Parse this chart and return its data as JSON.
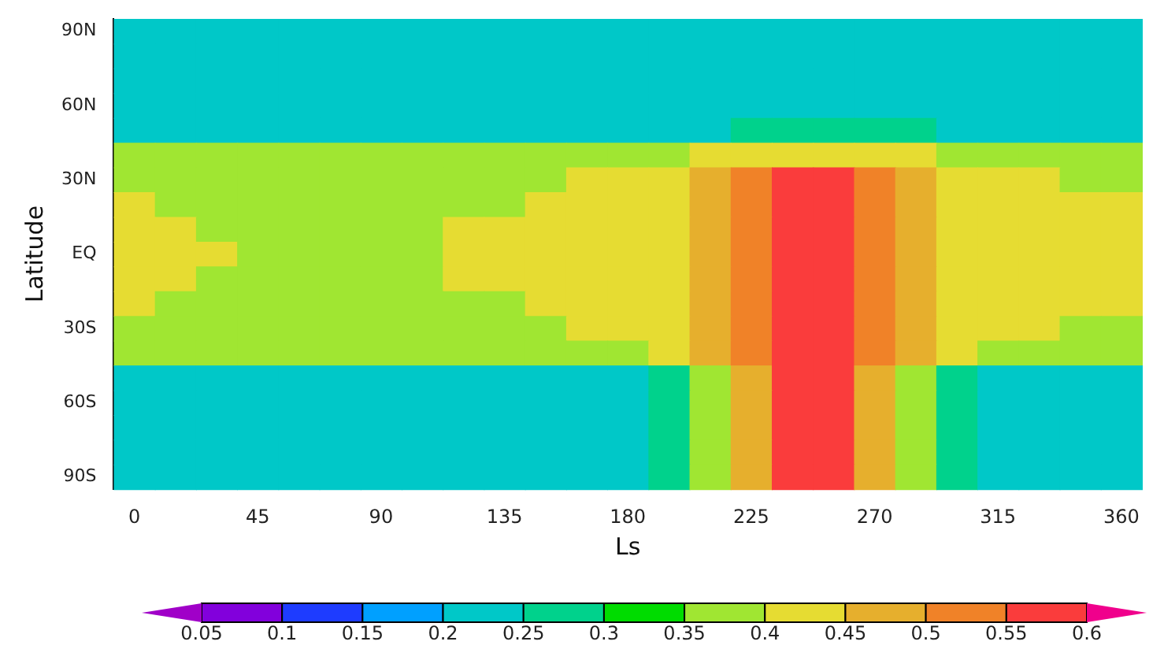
{
  "chart_data": {
    "type": "heatmap",
    "xlabel": "Ls",
    "ylabel": "Latitude",
    "categories": [
      "0",
      null,
      null,
      "45",
      null,
      null,
      "90",
      null,
      null,
      "135",
      null,
      null,
      "180",
      null,
      null,
      "225",
      null,
      null,
      "270",
      null,
      null,
      "315",
      null,
      null,
      "360"
    ],
    "y_categories": [
      "90N",
      null,
      null,
      "60N",
      null,
      null,
      "30N",
      null,
      null,
      "EQ",
      null,
      null,
      "30S",
      null,
      null,
      "60S",
      null,
      null,
      "90S"
    ],
    "cells": [
      [
        0.225,
        0.225,
        0.225,
        0.225,
        0.225,
        0.225,
        0.225,
        0.225,
        0.225,
        0.225,
        0.225,
        0.225,
        0.225,
        0.225,
        0.225,
        0.225,
        0.225,
        0.225,
        0.225,
        0.225,
        0.225,
        0.225,
        0.225,
        0.225,
        0.225
      ],
      [
        0.225,
        0.225,
        0.225,
        0.225,
        0.225,
        0.225,
        0.225,
        0.225,
        0.225,
        0.225,
        0.225,
        0.225,
        0.225,
        0.225,
        0.225,
        0.225,
        0.225,
        0.225,
        0.225,
        0.225,
        0.225,
        0.225,
        0.225,
        0.225,
        0.225
      ],
      [
        0.225,
        0.225,
        0.225,
        0.225,
        0.225,
        0.225,
        0.225,
        0.225,
        0.225,
        0.225,
        0.225,
        0.225,
        0.225,
        0.225,
        0.225,
        0.225,
        0.225,
        0.225,
        0.225,
        0.225,
        0.225,
        0.225,
        0.225,
        0.225,
        0.225
      ],
      [
        0.225,
        0.225,
        0.225,
        0.225,
        0.225,
        0.225,
        0.225,
        0.225,
        0.225,
        0.225,
        0.225,
        0.225,
        0.225,
        0.225,
        0.225,
        0.225,
        0.225,
        0.225,
        0.225,
        0.225,
        0.225,
        0.225,
        0.225,
        0.225,
        0.225
      ],
      [
        0.225,
        0.225,
        0.225,
        0.225,
        0.225,
        0.225,
        0.225,
        0.225,
        0.225,
        0.225,
        0.225,
        0.225,
        0.225,
        0.225,
        0.225,
        0.275,
        0.275,
        0.275,
        0.275,
        0.275,
        0.225,
        0.225,
        0.225,
        0.225,
        0.225
      ],
      [
        0.375,
        0.375,
        0.375,
        0.375,
        0.375,
        0.375,
        0.375,
        0.375,
        0.375,
        0.375,
        0.375,
        0.375,
        0.375,
        0.375,
        0.425,
        0.425,
        0.425,
        0.425,
        0.425,
        0.425,
        0.375,
        0.375,
        0.375,
        0.375,
        0.375
      ],
      [
        0.375,
        0.375,
        0.375,
        0.375,
        0.375,
        0.375,
        0.375,
        0.375,
        0.375,
        0.375,
        0.375,
        0.425,
        0.425,
        0.425,
        0.475,
        0.525,
        0.575,
        0.575,
        0.525,
        0.475,
        0.425,
        0.425,
        0.425,
        0.375,
        0.375
      ],
      [
        0.425,
        0.375,
        0.375,
        0.375,
        0.375,
        0.375,
        0.375,
        0.375,
        0.375,
        0.375,
        0.425,
        0.425,
        0.425,
        0.425,
        0.475,
        0.525,
        0.575,
        0.575,
        0.525,
        0.475,
        0.425,
        0.425,
        0.425,
        0.425,
        0.425
      ],
      [
        0.425,
        0.425,
        0.375,
        0.375,
        0.375,
        0.375,
        0.375,
        0.375,
        0.425,
        0.425,
        0.425,
        0.425,
        0.425,
        0.425,
        0.475,
        0.525,
        0.575,
        0.575,
        0.525,
        0.475,
        0.425,
        0.425,
        0.425,
        0.425,
        0.425
      ],
      [
        0.425,
        0.425,
        0.425,
        0.375,
        0.375,
        0.375,
        0.375,
        0.375,
        0.425,
        0.425,
        0.425,
        0.425,
        0.425,
        0.425,
        0.475,
        0.525,
        0.575,
        0.575,
        0.525,
        0.475,
        0.425,
        0.425,
        0.425,
        0.425,
        0.425
      ],
      [
        0.425,
        0.425,
        0.375,
        0.375,
        0.375,
        0.375,
        0.375,
        0.375,
        0.425,
        0.425,
        0.425,
        0.425,
        0.425,
        0.425,
        0.475,
        0.525,
        0.575,
        0.575,
        0.525,
        0.475,
        0.425,
        0.425,
        0.425,
        0.425,
        0.425
      ],
      [
        0.425,
        0.375,
        0.375,
        0.375,
        0.375,
        0.375,
        0.375,
        0.375,
        0.375,
        0.375,
        0.425,
        0.425,
        0.425,
        0.425,
        0.475,
        0.525,
        0.575,
        0.575,
        0.525,
        0.475,
        0.425,
        0.425,
        0.425,
        0.425,
        0.425
      ],
      [
        0.375,
        0.375,
        0.375,
        0.375,
        0.375,
        0.375,
        0.375,
        0.375,
        0.375,
        0.375,
        0.375,
        0.425,
        0.425,
        0.425,
        0.475,
        0.525,
        0.575,
        0.575,
        0.525,
        0.475,
        0.425,
        0.425,
        0.425,
        0.375,
        0.375
      ],
      [
        0.375,
        0.375,
        0.375,
        0.375,
        0.375,
        0.375,
        0.375,
        0.375,
        0.375,
        0.375,
        0.375,
        0.375,
        0.375,
        0.425,
        0.475,
        0.525,
        0.575,
        0.575,
        0.525,
        0.475,
        0.425,
        0.375,
        0.375,
        0.375,
        0.375
      ],
      [
        0.225,
        0.225,
        0.225,
        0.225,
        0.225,
        0.225,
        0.225,
        0.225,
        0.225,
        0.225,
        0.225,
        0.225,
        0.225,
        0.275,
        0.375,
        0.475,
        0.575,
        0.575,
        0.475,
        0.375,
        0.275,
        0.225,
        0.225,
        0.225,
        0.225
      ],
      [
        0.225,
        0.225,
        0.225,
        0.225,
        0.225,
        0.225,
        0.225,
        0.225,
        0.225,
        0.225,
        0.225,
        0.225,
        0.225,
        0.275,
        0.375,
        0.475,
        0.575,
        0.575,
        0.475,
        0.375,
        0.275,
        0.225,
        0.225,
        0.225,
        0.225
      ],
      [
        0.225,
        0.225,
        0.225,
        0.225,
        0.225,
        0.225,
        0.225,
        0.225,
        0.225,
        0.225,
        0.225,
        0.225,
        0.225,
        0.275,
        0.375,
        0.475,
        0.575,
        0.575,
        0.475,
        0.375,
        0.275,
        0.225,
        0.225,
        0.225,
        0.225
      ],
      [
        0.225,
        0.225,
        0.225,
        0.225,
        0.225,
        0.225,
        0.225,
        0.225,
        0.225,
        0.225,
        0.225,
        0.225,
        0.225,
        0.275,
        0.375,
        0.475,
        0.575,
        0.575,
        0.475,
        0.375,
        0.275,
        0.225,
        0.225,
        0.225,
        0.225
      ],
      [
        0.225,
        0.225,
        0.225,
        0.225,
        0.225,
        0.225,
        0.225,
        0.225,
        0.225,
        0.225,
        0.225,
        0.225,
        0.225,
        0.275,
        0.375,
        0.475,
        0.575,
        0.575,
        0.475,
        0.375,
        0.275,
        0.225,
        0.225,
        0.225,
        0.225
      ]
    ],
    "clim": [
      0.05,
      0.6
    ],
    "cticks": [
      0.05,
      0.1,
      0.15,
      0.2,
      0.25,
      0.3,
      0.35,
      0.4,
      0.45,
      0.5,
      0.55,
      0.6
    ],
    "colors": [
      "#a000c8",
      "#8200dc",
      "#1e3cff",
      "#00a0ff",
      "#00c8c8",
      "#00d28c",
      "#00dc00",
      "#a0e632",
      "#e6dc32",
      "#e6af2d",
      "#f08228",
      "#fa3c3c",
      "#f0008c"
    ]
  }
}
